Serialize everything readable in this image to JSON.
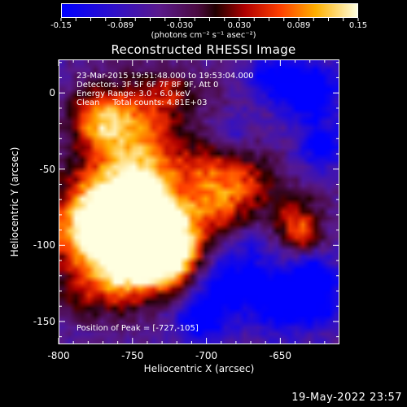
{
  "colorbar": {
    "tick_labels": [
      "-0.15",
      "-0.089",
      "-0.030",
      "0.030",
      "0.089",
      "0.15"
    ],
    "range": [
      -0.15,
      0.15
    ],
    "units": "(photons cm⁻² s⁻¹ asec⁻²)"
  },
  "image": {
    "title": "Reconstructed RHESSI Image",
    "info_lines": [
      "23-Mar-2015 19:51:48.000 to 19:53:04.000",
      "Detectors: 3F 5F 6F 7F 8F 9F, Att 0",
      "Energy Range: 3.0 - 6.0 keV",
      "Clean     Total counts: 4.81E+03"
    ],
    "peak_label": "Position of Peak = [-727,-105]",
    "peak_position": [
      -727,
      -105
    ]
  },
  "axes": {
    "x_title": "Heliocentric X (arcsec)",
    "y_title": "Heliocentric Y (arcsec)",
    "x_ticks": [
      "-800",
      "-750",
      "-700",
      "-650"
    ],
    "x_tick_values": [
      -800,
      -750,
      -700,
      -650
    ],
    "y_ticks": [
      "0",
      "-50",
      "-100",
      "-150"
    ],
    "y_tick_values": [
      0,
      -50,
      -100,
      -150
    ],
    "x_range": [
      -800,
      -610
    ],
    "y_range": [
      -165,
      22
    ]
  },
  "footer": {
    "timestamp": "19-May-2022 23:57"
  }
}
